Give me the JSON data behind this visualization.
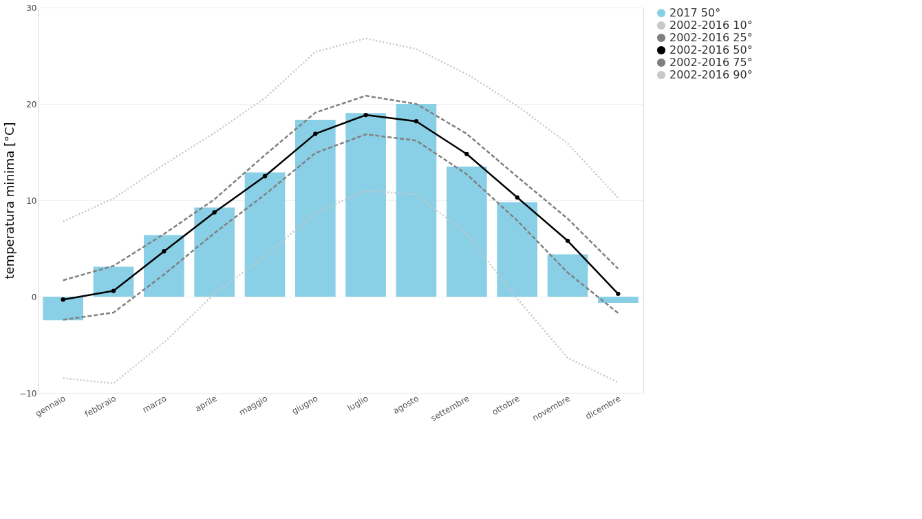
{
  "chart_data": {
    "type": "bar",
    "ylabel": "temperatura minima [°C]",
    "categories": [
      "gennaio",
      "febbraio",
      "marzo",
      "aprile",
      "maggio",
      "giugno",
      "luglio",
      "agosto",
      "settembre",
      "ottobre",
      "novembre",
      "dicembre"
    ],
    "series": [
      {
        "name": "2017 50°",
        "color": "#89cfe6",
        "values": [
          -2.45,
          3.1,
          6.4,
          9.25,
          12.9,
          18.35,
          19.05,
          20.0,
          13.5,
          9.8,
          4.4,
          -0.65
        ]
      },
      {
        "name": "2002-2016 10°",
        "type": "line",
        "color": "#c8c8c8",
        "line_style": "dotted",
        "marker": "none",
        "values": [
          -8.45,
          -9.0,
          -4.75,
          0.3,
          4.2,
          8.7,
          11.0,
          10.6,
          6.5,
          -0.2,
          -6.35,
          -8.9
        ]
      },
      {
        "name": "2002-2016 25°",
        "type": "line",
        "color": "#808080",
        "line_style": "dashed",
        "marker": "none",
        "values": [
          -2.4,
          -1.65,
          2.3,
          6.6,
          10.6,
          14.9,
          16.85,
          16.2,
          12.7,
          7.9,
          2.5,
          -1.7
        ]
      },
      {
        "name": "2002-2016 50°",
        "type": "line",
        "color": "#000000",
        "line_style": "solid",
        "marker": "circle",
        "values": [
          -0.3,
          0.6,
          4.7,
          8.75,
          12.5,
          16.9,
          18.85,
          18.2,
          14.8,
          10.3,
          5.8,
          0.3
        ]
      },
      {
        "name": "2002-2016 75°",
        "type": "line",
        "color": "#808080",
        "line_style": "dashed",
        "marker": "none",
        "values": [
          1.7,
          3.2,
          6.5,
          10.1,
          14.7,
          19.1,
          20.85,
          20.0,
          16.9,
          12.45,
          8.1,
          2.9
        ]
      },
      {
        "name": "2002-2016 90°",
        "type": "line",
        "color": "#c8c8c8",
        "line_style": "dotted",
        "marker": "none",
        "values": [
          7.8,
          10.2,
          13.7,
          17.0,
          20.6,
          25.4,
          26.8,
          25.7,
          23.1,
          19.8,
          15.9,
          10.25
        ]
      }
    ],
    "ylim": [
      -10,
      30
    ],
    "yticks": [
      -10,
      0,
      10,
      20,
      30
    ],
    "grid": "y",
    "legend": "right"
  }
}
